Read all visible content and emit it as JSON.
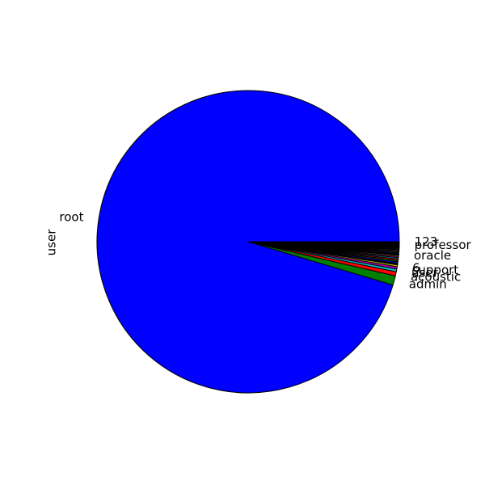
{
  "chart_data": {
    "type": "pie",
    "title": "",
    "ylabel": "user",
    "start_angle_deg": 0,
    "direction": "counterclockwise",
    "edge_color": "#000000",
    "slices": [
      {
        "label": "root",
        "value": 96.2,
        "color": "#0000ff"
      },
      {
        "label": "admin",
        "value": 1.0,
        "color": "#008000"
      },
      {
        "label": "acoustic",
        "value": 0.45,
        "color": "#ff0000"
      },
      {
        "label": "user",
        "value": 0.3,
        "color": "#00bfbf"
      },
      {
        "label": "support",
        "value": 0.25,
        "color": "#bf00bf"
      },
      {
        "label": "6",
        "value": 0.2,
        "color": "#bfbf00"
      },
      {
        "label": "",
        "value": 0.16,
        "color": "#000000"
      },
      {
        "label": "",
        "value": 0.16,
        "color": "#0000ff"
      },
      {
        "label": "",
        "value": 0.15,
        "color": "#008000"
      },
      {
        "label": "",
        "value": 0.15,
        "color": "#ff0000"
      },
      {
        "label": "",
        "value": 0.14,
        "color": "#00bfbf"
      },
      {
        "label": "",
        "value": 0.14,
        "color": "#bf00bf"
      },
      {
        "label": "",
        "value": 0.13,
        "color": "#bfbf00"
      },
      {
        "label": "oracle",
        "value": 0.13,
        "color": "#000000"
      },
      {
        "label": "",
        "value": 0.12,
        "color": "#0000ff"
      },
      {
        "label": "",
        "value": 0.12,
        "color": "#008000"
      },
      {
        "label": "",
        "value": 0.11,
        "color": "#ff0000"
      },
      {
        "label": "",
        "value": 0.11,
        "color": "#00bfbf"
      },
      {
        "label": "",
        "value": 0.1,
        "color": "#bf00bf"
      },
      {
        "label": "",
        "value": 0.1,
        "color": "#bfbf00"
      },
      {
        "label": "",
        "value": 0.09,
        "color": "#000000"
      },
      {
        "label": "",
        "value": 0.09,
        "color": "#0000ff"
      },
      {
        "label": "",
        "value": 0.08,
        "color": "#008000"
      },
      {
        "label": "professor",
        "value": 0.08,
        "color": "#ff0000"
      },
      {
        "label": "",
        "value": 0.07,
        "color": "#00bfbf"
      },
      {
        "label": "",
        "value": 0.07,
        "color": "#bf00bf"
      },
      {
        "label": "",
        "value": 0.06,
        "color": "#bfbf00"
      },
      {
        "label": "",
        "value": 0.06,
        "color": "#000000"
      },
      {
        "label": "123",
        "value": 0.05,
        "color": "#0000ff"
      }
    ]
  }
}
